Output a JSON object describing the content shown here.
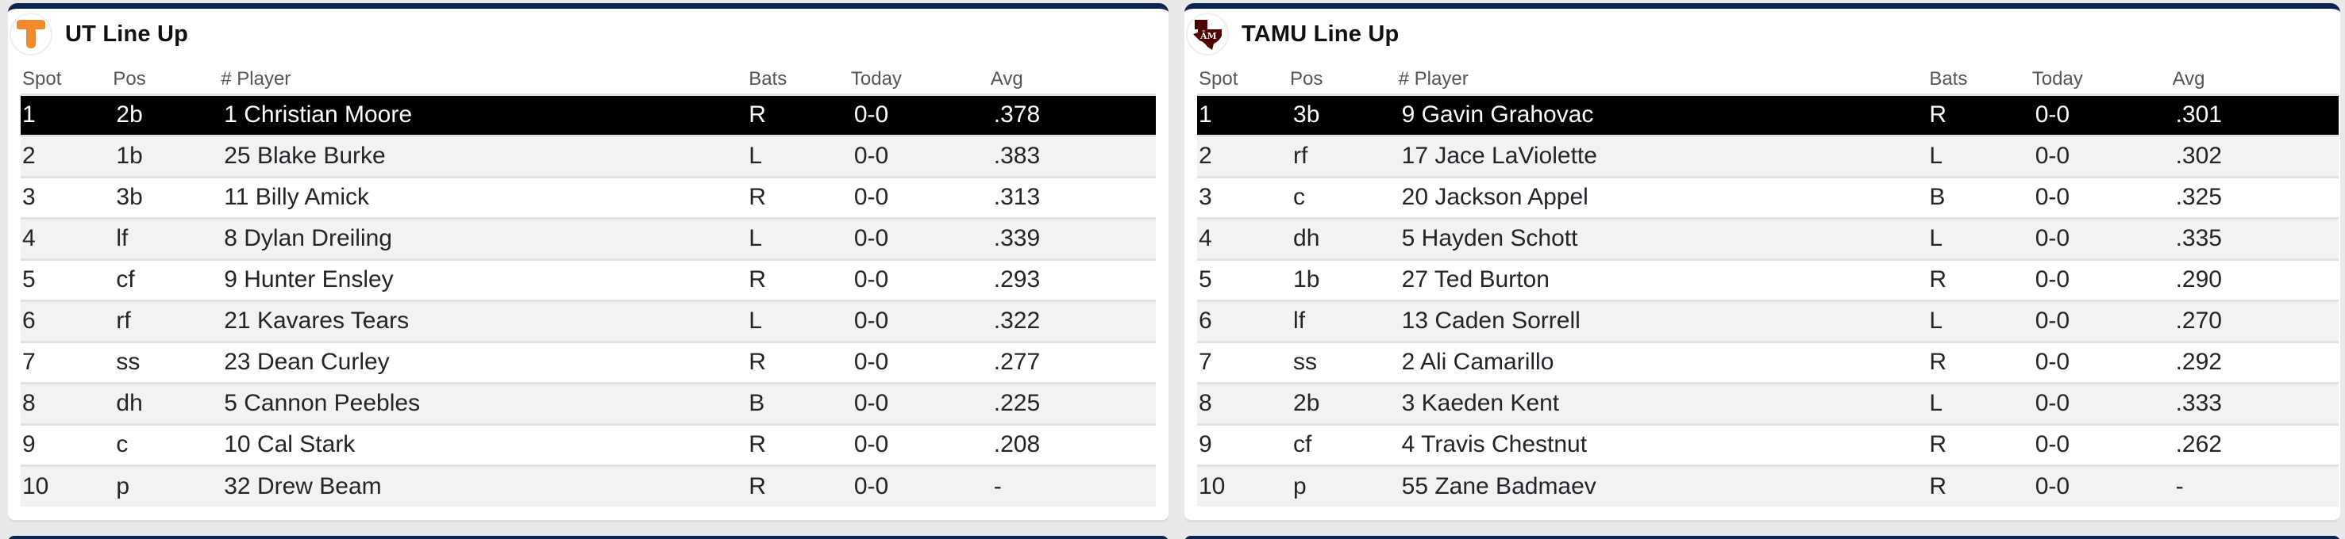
{
  "columns": [
    "Spot",
    "Pos",
    "# Player",
    "Bats",
    "Today",
    "Avg"
  ],
  "colors": {
    "card_top_border": "#0c2550",
    "page_background": "#e9e9e9",
    "active_row_bg": "#000000",
    "striped_row_bg": "#f2f2f2",
    "ut_orange": "#f08a2c",
    "tamu_maroon": "#500000"
  },
  "teams": [
    {
      "key": "ut",
      "title": "UT Line Up",
      "logo_icon": "tennessee-power-t-logo",
      "lineup": [
        {
          "spot": "1",
          "pos": "2b",
          "player": "1 Christian Moore",
          "bats": "R",
          "today": "0-0",
          "avg": ".378",
          "active": true
        },
        {
          "spot": "2",
          "pos": "1b",
          "player": "25 Blake Burke",
          "bats": "L",
          "today": "0-0",
          "avg": ".383"
        },
        {
          "spot": "3",
          "pos": "3b",
          "player": "11 Billy Amick",
          "bats": "R",
          "today": "0-0",
          "avg": ".313"
        },
        {
          "spot": "4",
          "pos": "lf",
          "player": "8 Dylan Dreiling",
          "bats": "L",
          "today": "0-0",
          "avg": ".339"
        },
        {
          "spot": "5",
          "pos": "cf",
          "player": "9 Hunter Ensley",
          "bats": "R",
          "today": "0-0",
          "avg": ".293"
        },
        {
          "spot": "6",
          "pos": "rf",
          "player": "21 Kavares Tears",
          "bats": "L",
          "today": "0-0",
          "avg": ".322"
        },
        {
          "spot": "7",
          "pos": "ss",
          "player": "23 Dean Curley",
          "bats": "R",
          "today": "0-0",
          "avg": ".277"
        },
        {
          "spot": "8",
          "pos": "dh",
          "player": "5 Cannon Peebles",
          "bats": "B",
          "today": "0-0",
          "avg": ".225"
        },
        {
          "spot": "9",
          "pos": "c",
          "player": "10 Cal Stark",
          "bats": "R",
          "today": "0-0",
          "avg": ".208"
        },
        {
          "spot": "10",
          "pos": "p",
          "player": "32 Drew Beam",
          "bats": "R",
          "today": "0-0",
          "avg": "-"
        }
      ]
    },
    {
      "key": "tamu",
      "title": "TAMU Line Up",
      "logo_icon": "texas-am-atm-logo",
      "lineup": [
        {
          "spot": "1",
          "pos": "3b",
          "player": "9 Gavin Grahovac",
          "bats": "R",
          "today": "0-0",
          "avg": ".301",
          "active": true
        },
        {
          "spot": "2",
          "pos": "rf",
          "player": "17 Jace LaViolette",
          "bats": "L",
          "today": "0-0",
          "avg": ".302"
        },
        {
          "spot": "3",
          "pos": "c",
          "player": "20 Jackson Appel",
          "bats": "B",
          "today": "0-0",
          "avg": ".325"
        },
        {
          "spot": "4",
          "pos": "dh",
          "player": "5 Hayden Schott",
          "bats": "L",
          "today": "0-0",
          "avg": ".335"
        },
        {
          "spot": "5",
          "pos": "1b",
          "player": "27 Ted Burton",
          "bats": "R",
          "today": "0-0",
          "avg": ".290"
        },
        {
          "spot": "6",
          "pos": "lf",
          "player": "13 Caden Sorrell",
          "bats": "L",
          "today": "0-0",
          "avg": ".270"
        },
        {
          "spot": "7",
          "pos": "ss",
          "player": "2 Ali Camarillo",
          "bats": "R",
          "today": "0-0",
          "avg": ".292"
        },
        {
          "spot": "8",
          "pos": "2b",
          "player": "3 Kaeden Kent",
          "bats": "L",
          "today": "0-0",
          "avg": ".333"
        },
        {
          "spot": "9",
          "pos": "cf",
          "player": "4 Travis Chestnut",
          "bats": "R",
          "today": "0-0",
          "avg": ".262"
        },
        {
          "spot": "10",
          "pos": "p",
          "player": "55 Zane Badmaev",
          "bats": "R",
          "today": "0-0",
          "avg": "-"
        }
      ]
    }
  ]
}
